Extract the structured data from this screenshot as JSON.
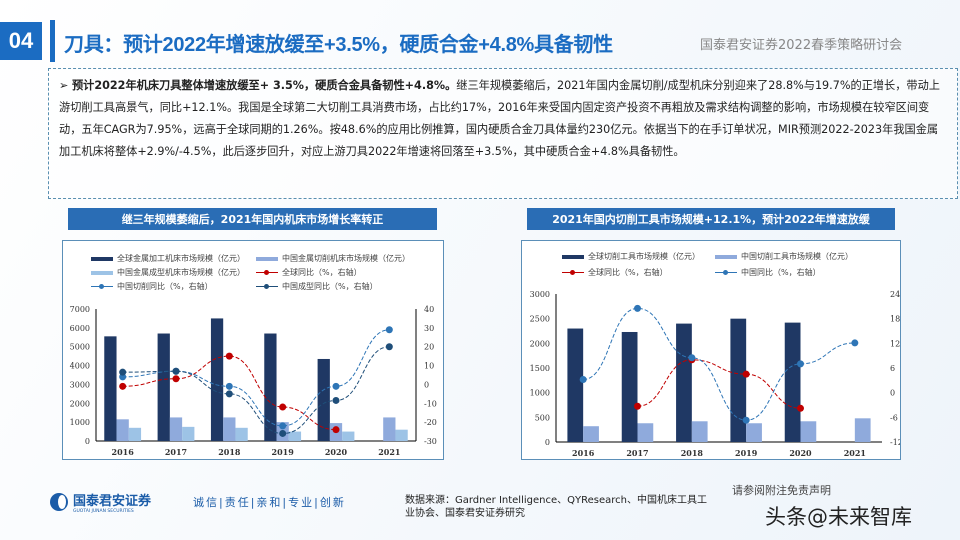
{
  "header": {
    "badge": "04",
    "title": "刀具：预计2022年增速放缓至+3.5%，硬质合金+4.8%具备韧性",
    "subtitle": "国泰君安证券2022春季策略研讨会",
    "accent": "#1b6cc2"
  },
  "summary": {
    "bullet": "➢",
    "bold": "预计2022年机床刀具整体增速放缓至+ 3.5%，硬质合金具备韧性+4.8%。",
    "text": "继三年规模萎缩后，2021年国内金属切削/成型机床分别迎来了28.8%与19.7%的正增长，带动上游切削工具高景气，同比+12.1%。我国是全球第二大切削工具消费市场，占比约17%，2016年来受国内固定资产投资不再粗放及需求结构调整的影响，市场规模在较窄区间变动，五年CAGR为7.95%，远高于全球同期的1.26%。按48.6%的应用比例推算，国内硬质合金刀具体量约230亿元。依据当下的在手订单状况，MIR预测2022-2023年我国金属加工机床将整体+2.9%/-4.5%，此后逐步回升，对应上游刀具2022年增速将回落至+3.5%，其中硬质合金+4.8%具备韧性。"
  },
  "chart_data": [
    {
      "type": "bar+line",
      "title": "继三年规模萎缩后，2021年国内机床市场增长率转正",
      "categories": [
        "2016",
        "2017",
        "2018",
        "2019",
        "2020",
        "2021"
      ],
      "ylim": [
        0,
        7000
      ],
      "yticks": [
        "0",
        "1000",
        "2000",
        "3000",
        "4000",
        "5000",
        "6000",
        "7000"
      ],
      "y2lim": [
        -30,
        40
      ],
      "y2ticks": [
        "-30",
        "-20",
        "-10",
        "0",
        "10",
        "20",
        "30",
        "40"
      ],
      "bars": [
        {
          "name": "全球金属加工机床市场规模（亿元）",
          "color": "#1f3864",
          "values": [
            5550,
            5700,
            6500,
            5700,
            4350,
            null
          ]
        },
        {
          "name": "中国金属切削机床市场规模（亿元）",
          "color": "#8faadc",
          "values": [
            1150,
            1250,
            1250,
            1000,
            950,
            1250
          ]
        },
        {
          "name": "中国金属成型机床市场规模（亿元）",
          "color": "#9dc3e6",
          "values": [
            700,
            750,
            700,
            500,
            500,
            600
          ]
        }
      ],
      "lines": [
        {
          "name": "全球同比（%，右轴）",
          "color": "#c00000",
          "values": [
            -1,
            3,
            15,
            -12,
            -24,
            null
          ]
        },
        {
          "name": "中国切削同比（%，右轴）",
          "color": "#2e75b6",
          "values": [
            4,
            7,
            -1,
            -22,
            -1,
            29
          ]
        },
        {
          "name": "中国成型同比（%，右轴）",
          "color": "#1f4e79",
          "values": [
            6.5,
            7,
            -5,
            -26,
            -8.5,
            20
          ]
        }
      ]
    },
    {
      "type": "bar+line",
      "title": "2021年国内切削工具市场规模+12.1%，预计2022年增速放缓",
      "categories": [
        "2016",
        "2017",
        "2018",
        "2019",
        "2020",
        "2021"
      ],
      "ylim": [
        0,
        3000
      ],
      "yticks": [
        "0",
        "500",
        "1000",
        "1500",
        "2000",
        "2500",
        "3000"
      ],
      "y2lim": [
        -12,
        24
      ],
      "y2ticks": [
        "-12",
        "-6",
        "0",
        "6",
        "12",
        "18",
        "24"
      ],
      "bars": [
        {
          "name": "全球切削工具市场规模（亿元）",
          "color": "#1f3864",
          "values": [
            2300,
            2230,
            2400,
            2500,
            2420,
            null
          ]
        },
        {
          "name": "中国切削工具市场规模（亿元）",
          "color": "#8faadc",
          "values": [
            320,
            380,
            420,
            380,
            420,
            480
          ]
        }
      ],
      "lines": [
        {
          "name": "全球同比（%，右轴）",
          "color": "#c00000",
          "values": [
            null,
            -3.3,
            8,
            4.5,
            -3.8,
            null
          ]
        },
        {
          "name": "中国同比（%，右轴）",
          "color": "#2e75b6",
          "values": [
            3.2,
            20.5,
            8.5,
            -6.7,
            7,
            12.1
          ]
        }
      ]
    }
  ],
  "footer": {
    "logo_cn": "国泰君安证券",
    "logo_en": "GUOTAI JUNAN SECURITIES",
    "slogan": "诚信|责任|亲和|专业|创新",
    "source": "数据来源：Gardner Intelligence、QYResearch、中国机床工具工业协会、国泰君安证券研究",
    "disclaimer": "请参阅附注免责声明",
    "watermark": "头条@未来智库"
  }
}
